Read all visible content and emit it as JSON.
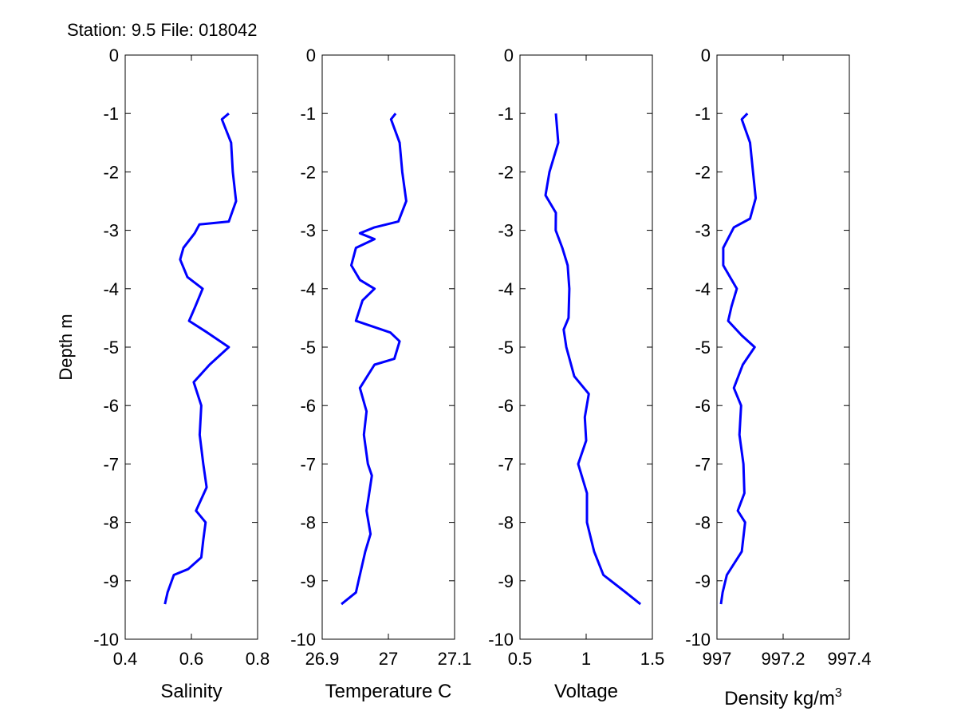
{
  "chart_data": {
    "type": "line",
    "title": "Station: 9.5 File: 018042",
    "ylabel": "Depth m",
    "ylim": [
      -10,
      0
    ],
    "yticks": [
      "0",
      "-1",
      "-2",
      "-3",
      "-4",
      "-5",
      "-6",
      "-7",
      "-8",
      "-9",
      "-10"
    ],
    "line_color": "#0000ff",
    "grid": false,
    "panels": [
      {
        "xlabel": "Salinity",
        "xlim": [
          0.4,
          0.8
        ],
        "xticks": [
          0.4,
          0.6,
          0.8
        ],
        "xtick_labels": [
          "0.4",
          "0.6",
          "0.8"
        ],
        "depth": [
          -1,
          -1.1,
          -1.5,
          -2,
          -2.5,
          -2.85,
          -2.9,
          -3.05,
          -3.3,
          -3.5,
          -3.8,
          -4.0,
          -4.3,
          -4.55,
          -4.75,
          -5.0,
          -5.3,
          -5.6,
          -6.0,
          -6.5,
          -7.0,
          -7.4,
          -7.8,
          -8.0,
          -8.3,
          -8.6,
          -8.8,
          -8.9,
          -9.2,
          -9.4
        ],
        "values": [
          0.713,
          0.692,
          0.72,
          0.725,
          0.735,
          0.713,
          0.624,
          0.61,
          0.576,
          0.566,
          0.588,
          0.634,
          0.612,
          0.593,
          0.648,
          0.713,
          0.655,
          0.607,
          0.63,
          0.625,
          0.636,
          0.646,
          0.614,
          0.643,
          0.636,
          0.63,
          0.59,
          0.547,
          0.528,
          0.52
        ]
      },
      {
        "xlabel": "Temperature C",
        "xlim": [
          26.9,
          27.1
        ],
        "xticks": [
          26.9,
          27.0,
          27.1
        ],
        "xtick_labels": [
          "26.9",
          "27",
          "27.1"
        ],
        "depth": [
          -1,
          -1.1,
          -1.5,
          -2,
          -2.5,
          -2.85,
          -2.95,
          -3.05,
          -3.15,
          -3.3,
          -3.6,
          -3.85,
          -4.0,
          -4.2,
          -4.55,
          -4.75,
          -4.9,
          -5.2,
          -5.3,
          -5.7,
          -6.1,
          -6.5,
          -7.0,
          -7.2,
          -7.8,
          -8.2,
          -8.5,
          -9.0,
          -9.2,
          -9.4
        ],
        "values": [
          27.011,
          27.004,
          27.017,
          27.021,
          27.027,
          27.015,
          26.979,
          26.957,
          26.979,
          26.951,
          26.944,
          26.957,
          26.979,
          26.961,
          26.951,
          27.003,
          27.017,
          27.009,
          26.979,
          26.957,
          26.967,
          26.963,
          26.969,
          26.975,
          26.967,
          26.973,
          26.965,
          26.955,
          26.951,
          26.929
        ]
      },
      {
        "xlabel": "Voltage",
        "xlim": [
          0.5,
          1.5
        ],
        "xticks": [
          0.5,
          1.0,
          1.5
        ],
        "xtick_labels": [
          "0.5",
          "1",
          "1.5"
        ],
        "depth": [
          -1,
          -1.5,
          -2,
          -2.4,
          -2.7,
          -3.0,
          -3.3,
          -3.6,
          -4.0,
          -4.5,
          -4.7,
          -5.0,
          -5.5,
          -5.8,
          -6.2,
          -6.6,
          -7.0,
          -7.5,
          -8.0,
          -8.5,
          -8.9,
          -9.2,
          -9.4
        ],
        "values": [
          0.771,
          0.789,
          0.723,
          0.693,
          0.771,
          0.77,
          0.82,
          0.86,
          0.873,
          0.867,
          0.83,
          0.85,
          0.91,
          1.02,
          0.99,
          1.0,
          0.94,
          1.006,
          1.006,
          1.06,
          1.13,
          1.3,
          1.41
        ]
      },
      {
        "xlabel": "Density kg/m",
        "xlabel_superscript": "3",
        "xlim": [
          997.0,
          997.4
        ],
        "xticks": [
          997.0,
          997.2,
          997.4
        ],
        "xtick_labels": [
          "997",
          "997.2",
          "997.4"
        ],
        "depth": [
          -1,
          -1.1,
          -1.5,
          -2.0,
          -2.45,
          -2.8,
          -2.95,
          -3.3,
          -3.6,
          -4.0,
          -4.3,
          -4.55,
          -4.8,
          -5.0,
          -5.3,
          -5.7,
          -6.0,
          -6.5,
          -7.0,
          -7.5,
          -7.8,
          -8.0,
          -8.5,
          -8.9,
          -9.2,
          -9.4
        ],
        "values": [
          997.092,
          997.075,
          997.1,
          997.109,
          997.117,
          997.1,
          997.051,
          997.019,
          997.019,
          997.06,
          997.044,
          997.034,
          997.075,
          997.114,
          997.078,
          997.051,
          997.073,
          997.068,
          997.08,
          997.083,
          997.063,
          997.085,
          997.075,
          997.03,
          997.017,
          997.012
        ]
      }
    ]
  }
}
